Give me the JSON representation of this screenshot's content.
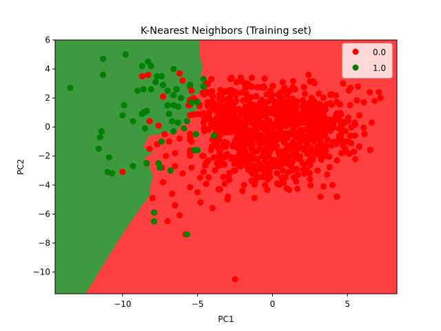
{
  "chart_data": {
    "type": "scatter",
    "title": "K-Nearest Neighbors (Training set)",
    "xlabel": "PC1",
    "ylabel": "PC2",
    "xlim": [
      -14.5,
      8.3
    ],
    "ylim": [
      -11.5,
      6.0
    ],
    "xticks": [
      -10,
      -5,
      0,
      5
    ],
    "yticks": [
      6,
      4,
      2,
      0,
      -2,
      -4,
      -6,
      -8,
      -10
    ],
    "xtick_labels": [
      "−10",
      "−5",
      "0",
      "5"
    ],
    "ytick_labels": [
      "6",
      "4",
      "2",
      "0",
      "−2",
      "−4",
      "−6",
      "−8",
      "−10"
    ],
    "grid": false,
    "legend_position": "top-right",
    "background_regions": [
      {
        "class": "0.0",
        "color": "#ff4040"
      },
      {
        "class": "1.0",
        "color": "#3f9a3f"
      }
    ],
    "decision_boundary": [
      [
        -12.5,
        -11.5
      ],
      [
        -11.3,
        -9.5
      ],
      [
        -10.1,
        -7.5
      ],
      [
        -9.0,
        -5.8
      ],
      [
        -8.2,
        -4.7
      ],
      [
        -8.2,
        -4.2
      ],
      [
        -8.0,
        -3.4
      ],
      [
        -8.3,
        -2.6
      ],
      [
        -8.6,
        -2.2
      ],
      [
        -8.0,
        -1.7
      ],
      [
        -8.7,
        -1.4
      ],
      [
        -8.4,
        -0.9
      ],
      [
        -8.3,
        -0.6
      ],
      [
        -6.5,
        -0.3
      ],
      [
        -6.0,
        0.2
      ],
      [
        -5.6,
        0.8
      ],
      [
        -4.9,
        1.3
      ],
      [
        -5.3,
        2.2
      ],
      [
        -4.4,
        2.5
      ],
      [
        -4.8,
        3.5
      ],
      [
        -4.7,
        4.2
      ],
      [
        -4.9,
        5.0
      ],
      [
        -4.9,
        6.0
      ]
    ],
    "series": [
      {
        "name": "0.0",
        "color": "#ff0000",
        "points": [
          [
            -2.5,
            -10.5
          ],
          [
            -5.8,
            -7.4
          ],
          [
            -7.0,
            -6.5
          ],
          [
            -6.2,
            -6.1
          ],
          [
            -4.0,
            -5.6
          ],
          [
            -6.5,
            -5.4
          ],
          [
            -4.8,
            -5.2
          ],
          [
            -8.0,
            -4.9
          ],
          [
            -3.0,
            -5.0
          ],
          [
            -6.7,
            -4.6
          ],
          [
            -1.2,
            -4.9
          ],
          [
            -2.0,
            -4.4
          ],
          [
            -0.5,
            -4.0
          ],
          [
            -5.0,
            -4.5
          ],
          [
            -3.5,
            -4.3
          ],
          [
            3.2,
            -4.8
          ],
          [
            4.3,
            -4.8
          ],
          [
            3.4,
            -4.1
          ],
          [
            4.0,
            -4.0
          ],
          [
            2.5,
            -3.6
          ],
          [
            0.6,
            -3.5
          ],
          [
            -7.3,
            -3.8
          ],
          [
            -10.0,
            -3.1
          ],
          [
            -6.0,
            -3.2
          ],
          [
            -4.6,
            -3.1
          ],
          [
            -5.4,
            -2.8
          ],
          [
            -7.4,
            -2.8
          ],
          [
            -6.5,
            -2.7
          ],
          [
            1.7,
            -3.3
          ],
          [
            3.0,
            -3.0
          ],
          [
            -2.5,
            -3.0
          ],
          [
            -1.5,
            -3.0
          ],
          [
            -0.2,
            -3.1
          ],
          [
            -3.7,
            -2.5
          ],
          [
            -4.6,
            -2.0
          ],
          [
            -7.1,
            -2.0
          ],
          [
            -6.5,
            -1.8
          ],
          [
            -8.2,
            -1.5
          ],
          [
            -7.7,
            -1.2
          ],
          [
            -6.9,
            -1.0
          ],
          [
            -6.2,
            -0.8
          ],
          [
            -5.4,
            -1.0
          ],
          [
            -4.1,
            -1.6
          ],
          [
            -7.2,
            -0.5
          ],
          [
            -7.6,
            0.1
          ],
          [
            -8.2,
            0.4
          ],
          [
            -7.3,
            2.1
          ],
          [
            -8.7,
            3.5
          ],
          [
            -8.3,
            3.6
          ],
          [
            -6.2,
            3.7
          ],
          [
            -6.0,
            3.2
          ],
          [
            -5.4,
            2.5
          ],
          [
            -5.6,
            1.5
          ],
          [
            -5.0,
            0.9
          ],
          [
            -4.6,
            0.3
          ],
          [
            -4.1,
            0.2
          ],
          [
            -3.5,
            0.1
          ],
          [
            -3.0,
            0.4
          ],
          [
            2.4,
            3.6
          ],
          [
            4.7,
            3.0
          ],
          [
            5.2,
            2.7
          ],
          [
            5.7,
            2.8
          ],
          [
            6.5,
            2.4
          ],
          [
            7.1,
            2.4
          ],
          [
            6.8,
            1.8
          ],
          [
            7.2,
            2.0
          ],
          [
            6.1,
            1.7
          ],
          [
            5.8,
            0.8
          ],
          [
            5.5,
            0.3
          ],
          [
            4.9,
            -1.0
          ],
          [
            4.6,
            -1.8
          ],
          [
            5.5,
            -0.6
          ],
          [
            -2.8,
            3.3
          ],
          [
            -2.4,
            3.1
          ],
          [
            -3.0,
            2.5
          ],
          [
            -1.8,
            2.7
          ],
          [
            -0.6,
            2.8
          ],
          [
            0.8,
            2.7
          ],
          [
            1.5,
            2.6
          ],
          [
            3.1,
            2.3
          ],
          [
            -2.2,
            -1.8
          ],
          [
            -1.0,
            -2.2
          ],
          [
            0.5,
            -2.0
          ],
          [
            2.0,
            -2.5
          ],
          [
            1.2,
            -1.5
          ],
          [
            3.5,
            -1.8
          ],
          [
            -0.7,
            -0.8
          ],
          [
            0.9,
            -0.6
          ],
          [
            2.6,
            -0.5
          ],
          [
            3.8,
            -0.2
          ]
        ],
        "clusters": [
          {
            "cx": 0.8,
            "cy": 0.6,
            "sx": 2.1,
            "sy": 1.1,
            "n": 340
          },
          {
            "cx": -2.0,
            "cy": -0.6,
            "sx": 1.7,
            "sy": 1.4,
            "n": 200
          },
          {
            "cx": 2.8,
            "cy": -0.6,
            "sx": 1.4,
            "sy": 1.2,
            "n": 170
          },
          {
            "cx": -1.0,
            "cy": -2.6,
            "sx": 1.8,
            "sy": 0.9,
            "n": 110
          },
          {
            "cx": -3.2,
            "cy": 1.4,
            "sx": 1.3,
            "sy": 1.0,
            "n": 90
          }
        ]
      },
      {
        "name": "1.0",
        "color": "#007f00",
        "points": [
          [
            -13.5,
            2.7
          ],
          [
            -11.3,
            4.7
          ],
          [
            -11.3,
            3.6
          ],
          [
            -9.8,
            5.0
          ],
          [
            -8.3,
            4.5
          ],
          [
            -8.1,
            4.2
          ],
          [
            -8.7,
            4.2
          ],
          [
            -6.6,
            4.0
          ],
          [
            -7.7,
            3.5
          ],
          [
            -7.4,
            3.5
          ],
          [
            -7.8,
            3.1
          ],
          [
            -7.3,
            2.9
          ],
          [
            -8.1,
            2.6
          ],
          [
            -8.6,
            2.6
          ],
          [
            -9.0,
            2.5
          ],
          [
            -7.0,
            2.5
          ],
          [
            -6.6,
            2.2
          ],
          [
            -6.1,
            2.0
          ],
          [
            -5.5,
            2.9
          ],
          [
            -4.6,
            2.8
          ],
          [
            -4.6,
            3.3
          ],
          [
            -5.4,
            1.7
          ],
          [
            -6.6,
            1.5
          ],
          [
            -6.3,
            1.4
          ],
          [
            -7.0,
            1.5
          ],
          [
            -8.7,
            0.9
          ],
          [
            -8.6,
            1.0
          ],
          [
            -8.4,
            1.1
          ],
          [
            -9.9,
            1.5
          ],
          [
            -10.0,
            0.8
          ],
          [
            -9.3,
            0.4
          ],
          [
            -8.5,
            -0.1
          ],
          [
            -6.9,
            0.9
          ],
          [
            -6.7,
            0.4
          ],
          [
            -6.3,
            0.3
          ],
          [
            -5.7,
            0.4
          ],
          [
            -5.9,
            -0.1
          ],
          [
            -6.6,
            -0.3
          ],
          [
            -5.1,
            -0.5
          ],
          [
            -3.9,
            -0.6
          ],
          [
            -5.0,
            -1.6
          ],
          [
            -5.2,
            -1.6
          ],
          [
            -7.4,
            -1.0
          ],
          [
            -11.4,
            -0.3
          ],
          [
            -11.5,
            -0.7
          ],
          [
            -11.6,
            -1.5
          ],
          [
            -10.9,
            -2.1
          ],
          [
            -11.0,
            -3.1
          ],
          [
            -10.7,
            -3.2
          ],
          [
            -9.3,
            -2.7
          ],
          [
            -8.4,
            -2.5
          ],
          [
            -7.6,
            -2.5
          ],
          [
            -7.5,
            -2.8
          ],
          [
            -6.8,
            -3.0
          ],
          [
            -7.9,
            -5.9
          ],
          [
            -7.9,
            -6.5
          ],
          [
            -5.7,
            -7.4
          ],
          [
            -5.0,
            1.7
          ],
          [
            -6.4,
            2.6
          ]
        ]
      }
    ]
  }
}
